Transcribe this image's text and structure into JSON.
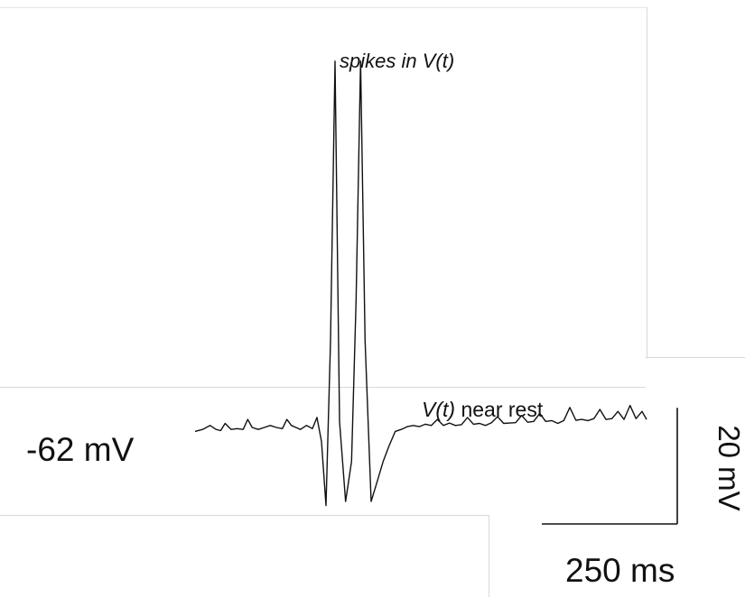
{
  "chart_data": {
    "type": "line",
    "title": "",
    "xlabel": "",
    "ylabel": "",
    "resting_potential_label": "-62 mV",
    "resting_potential_mV": -62,
    "annotations": {
      "spikes": "spikes in V(t)",
      "rest_italic": "V(t)",
      "rest_plain": "near rest"
    },
    "scale_bar": {
      "voltage": {
        "label": "20 mV",
        "value_mV": 20
      },
      "time": {
        "label": "250 ms",
        "value_ms": 250
      }
    },
    "ylim": [
      -82,
      34
    ],
    "xlim": [
      0,
      600
    ],
    "series": [
      {
        "x": [
          0,
          10,
          20,
          28,
          34,
          40,
          48,
          56,
          64,
          70,
          76,
          84,
          92,
          100,
          108,
          116,
          122,
          128,
          134,
          140,
          148,
          156,
          162,
          168,
          174,
          180,
          186,
          192,
          200,
          208,
          214,
          220,
          226,
          234,
          242,
          250,
          258,
          266,
          274,
          282,
          290,
          298,
          306,
          314,
          322,
          330,
          338,
          346,
          354,
          362,
          370,
          378,
          386,
          394,
          402,
          410,
          418,
          426,
          434,
          442,
          450,
          458,
          466,
          474,
          482,
          490,
          498,
          506,
          514,
          522,
          530,
          538,
          546,
          554,
          562,
          570,
          578,
          586,
          594,
          600
        ],
        "y": [
          -62.5,
          -62,
          -61,
          -62,
          -62.3,
          -60.5,
          -62,
          -61.8,
          -62,
          -59.5,
          -61.5,
          -62,
          -61.5,
          -61,
          -61.5,
          -61.8,
          -59.5,
          -61,
          -61.5,
          -62,
          -61,
          -61.8,
          -59,
          -65,
          -81,
          -40,
          30,
          -60,
          -80,
          -70,
          -30,
          30,
          -40,
          -80,
          -75,
          -70,
          -66,
          -62.5,
          -62,
          -61.3,
          -61,
          -61.3,
          -60.7,
          -61,
          -59.5,
          -61,
          -60.4,
          -61,
          -60.8,
          -59,
          -60.7,
          -60.5,
          -61,
          -60.3,
          -58.8,
          -60.5,
          -60.4,
          -60.3,
          -58.5,
          -60.2,
          -60,
          -58,
          -60,
          -59.8,
          -60.5,
          -59.8,
          -56.5,
          -59.7,
          -59.5,
          -59.8,
          -59.3,
          -57,
          -59.5,
          -59.3,
          -57.5,
          -59.5,
          -56,
          -59.3,
          -57.5,
          -59.5
        ]
      }
    ]
  }
}
